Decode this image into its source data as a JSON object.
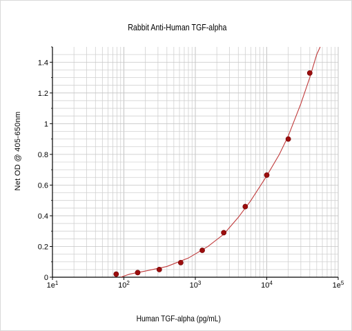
{
  "chart_data": {
    "type": "scatter",
    "title": "Rabbit Anti-Human TGF-alpha",
    "xlabel": "Human TGF-alpha (pg/mL)",
    "ylabel": "Net OD @ 405-650nm",
    "x_scale": "log10",
    "xlim": [
      10,
      100000
    ],
    "ylim": [
      0,
      1.5
    ],
    "x_ticks": [
      {
        "value": 10,
        "base": "1e",
        "exp": "1"
      },
      {
        "value": 100,
        "base": "10",
        "exp": "2"
      },
      {
        "value": 1000,
        "base": "10",
        "exp": "3"
      },
      {
        "value": 10000,
        "base": "10",
        "exp": "4"
      },
      {
        "value": 100000,
        "base": "1e",
        "exp": "5"
      }
    ],
    "y_ticks": [
      {
        "value": 0,
        "label": "0"
      },
      {
        "value": 0.2,
        "label": "0.2"
      },
      {
        "value": 0.4,
        "label": "0.4"
      },
      {
        "value": 0.6,
        "label": "0.6"
      },
      {
        "value": 0.8,
        "label": "0.8"
      },
      {
        "value": 1.0,
        "label": "1"
      },
      {
        "value": 1.2,
        "label": "1.2"
      },
      {
        "value": 1.4,
        "label": "1.4"
      }
    ],
    "grid": true,
    "series": [
      {
        "type": "scatter",
        "points": [
          {
            "x": 78,
            "y": 0.02
          },
          {
            "x": 156,
            "y": 0.03
          },
          {
            "x": 313,
            "y": 0.05
          },
          {
            "x": 625,
            "y": 0.095
          },
          {
            "x": 1250,
            "y": 0.175
          },
          {
            "x": 2500,
            "y": 0.29
          },
          {
            "x": 5000,
            "y": 0.46
          },
          {
            "x": 10000,
            "y": 0.665
          },
          {
            "x": 20000,
            "y": 0.9
          },
          {
            "x": 40000,
            "y": 1.33
          }
        ]
      },
      {
        "type": "line",
        "points": [
          {
            "x": 90,
            "y": 0.0
          },
          {
            "x": 120,
            "y": 0.02
          },
          {
            "x": 200,
            "y": 0.04
          },
          {
            "x": 400,
            "y": 0.07
          },
          {
            "x": 800,
            "y": 0.125
          },
          {
            "x": 1500,
            "y": 0.2
          },
          {
            "x": 2500,
            "y": 0.28
          },
          {
            "x": 4000,
            "y": 0.39
          },
          {
            "x": 6000,
            "y": 0.5
          },
          {
            "x": 10000,
            "y": 0.66
          },
          {
            "x": 15000,
            "y": 0.8
          },
          {
            "x": 20000,
            "y": 0.92
          },
          {
            "x": 30000,
            "y": 1.13
          },
          {
            "x": 40000,
            "y": 1.3
          },
          {
            "x": 50000,
            "y": 1.45
          },
          {
            "x": 56000,
            "y": 1.5
          }
        ]
      }
    ],
    "colors": {
      "marker": "#9b0d0d",
      "curve": "#c0393a",
      "grid": "#d0d0d0",
      "axis": "#000000"
    }
  }
}
